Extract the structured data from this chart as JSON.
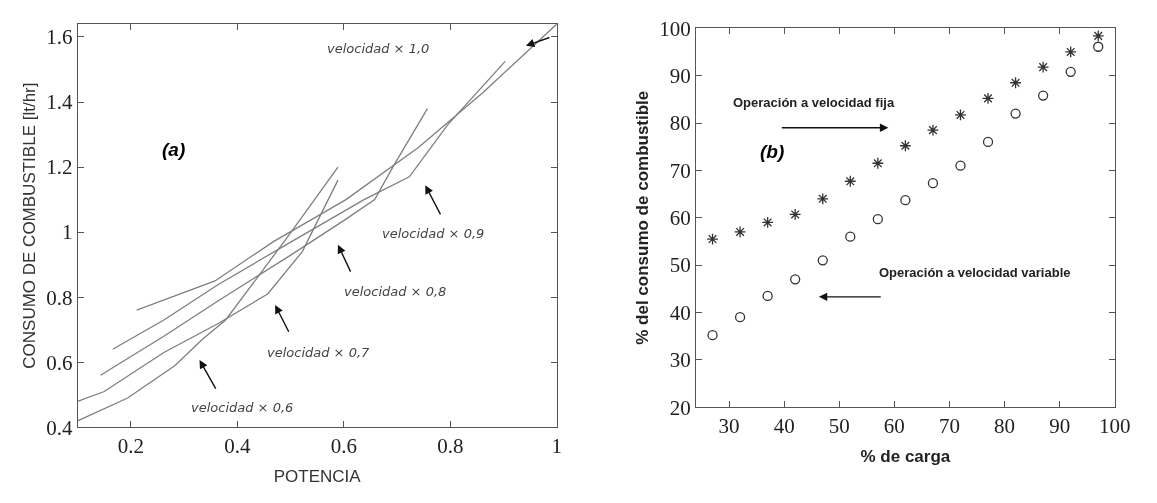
{
  "chart_data": [
    {
      "type": "line",
      "xlabel": "POTENCIA",
      "ylabel": "CONSUMO DE COMBUSTIBLE [lt/hr]",
      "xlim": [
        0.1,
        1.0
      ],
      "ylim": [
        0.4,
        1.64
      ],
      "xticks": [
        0.2,
        0.4,
        0.6,
        0.8,
        1
      ],
      "yticks": [
        0.4,
        0.6,
        0.8,
        1,
        1.2,
        1.4,
        1.6
      ],
      "marker": "none",
      "line_style": "solid",
      "series": [
        {
          "color": "#7f7f7f",
          "x": [
            0.1,
            0.194,
            0.283,
            0.334,
            0.378,
            0.433,
            0.501,
            0.589
          ],
          "values": [
            0.42,
            0.49,
            0.59,
            0.67,
            0.73,
            0.85,
            1.0,
            1.2
          ]
        },
        {
          "color": "#7f7f7f",
          "x": [
            0.1,
            0.15,
            0.262,
            0.365,
            0.457,
            0.522,
            0.589
          ],
          "values": [
            0.48,
            0.51,
            0.63,
            0.72,
            0.81,
            0.94,
            1.16
          ]
        },
        {
          "color": "#7f7f7f",
          "x": [
            0.143,
            0.262,
            0.365,
            0.501,
            0.604,
            0.658,
            0.692,
            0.757
          ],
          "values": [
            0.56,
            0.68,
            0.79,
            0.93,
            1.04,
            1.1,
            1.2,
            1.38
          ]
        },
        {
          "color": "#7f7f7f",
          "x": [
            0.166,
            0.262,
            0.365,
            0.501,
            0.638,
            0.723,
            0.795,
            0.903
          ],
          "values": [
            0.64,
            0.73,
            0.84,
            0.97,
            1.1,
            1.17,
            1.33,
            1.525
          ]
        },
        {
          "color": "#7f7f7f",
          "x": [
            0.211,
            0.358,
            0.467,
            0.604,
            0.74,
            0.862,
            1.0
          ],
          "values": [
            0.76,
            0.85,
            0.97,
            1.1,
            1.26,
            1.43,
            1.64
          ]
        }
      ],
      "annotations": [
        "velocidad × 0,6",
        "velocidad × 0,7",
        "velocidad × 0,8",
        "velocidad × 0,9",
        "velocidad × 1,0",
        "(a)"
      ]
    },
    {
      "type": "scatter",
      "xlabel": "% de carga",
      "ylabel": "% del consumo de combustible",
      "xlim": [
        24,
        100
      ],
      "ylim": [
        20,
        100
      ],
      "xticks": [
        30,
        40,
        50,
        60,
        70,
        80,
        90,
        100
      ],
      "yticks": [
        20,
        30,
        40,
        50,
        60,
        70,
        80,
        90,
        100
      ],
      "x": [
        27,
        32,
        37,
        42,
        47,
        52,
        57,
        62,
        67,
        72,
        77,
        82,
        87,
        92,
        97
      ],
      "series": [
        {
          "color": "#333333",
          "marker": "cross",
          "values": [
            55.5,
            57,
            59,
            60.7,
            64,
            67.7,
            71.5,
            75.2,
            78.5,
            81.7,
            85.2,
            88.5,
            91.8,
            95,
            98.4
          ]
        },
        {
          "color": "#333333",
          "marker": "circle",
          "values": [
            35.2,
            39,
            43.5,
            47,
            51,
            56,
            59.7,
            63.7,
            67.3,
            71,
            76,
            82,
            85.8,
            90.8,
            96.1
          ]
        }
      ],
      "annotations": [
        "Operación a velocidad fija",
        "Operación a velocidad variable",
        "(b)"
      ]
    }
  ]
}
